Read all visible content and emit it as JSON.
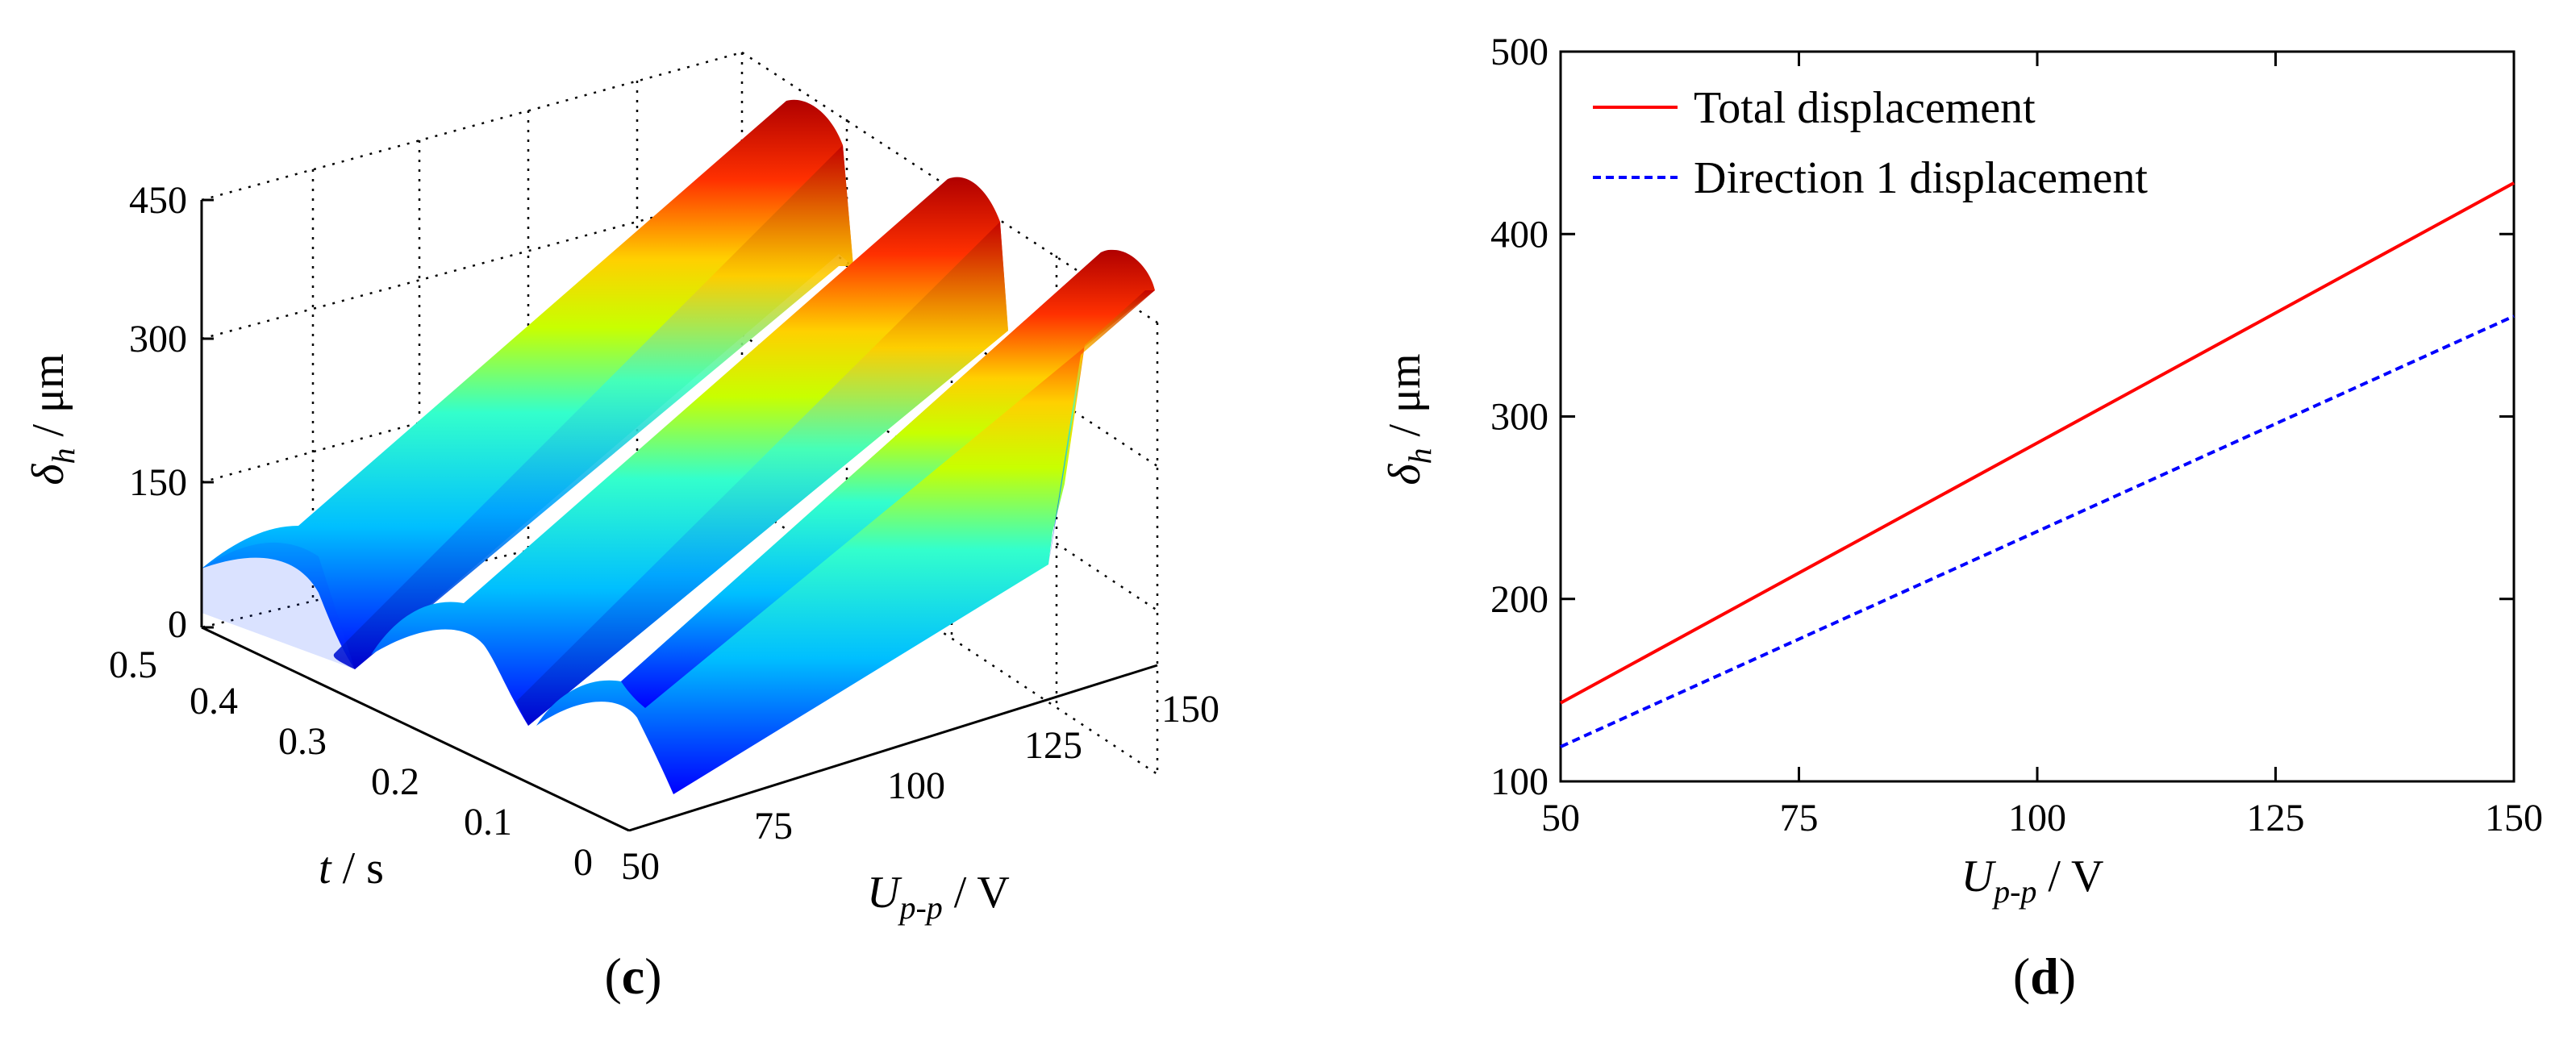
{
  "chart_data": [
    {
      "panel": "c",
      "type": "surface",
      "caption_letter": "c",
      "zlabel": {
        "symbol": "δ",
        "sub": "h",
        "unit": " / μm"
      },
      "xlabel": {
        "symbol": "t",
        "unit": " / s"
      },
      "ylabel": {
        "symbol": "U",
        "sub": "p-p",
        "unit": " / V"
      },
      "z_ticks": [
        "0",
        "150",
        "300",
        "450"
      ],
      "t_ticks": [
        "0",
        "0.1",
        "0.2",
        "0.3",
        "0.4",
        "0.5"
      ],
      "u_ticks": [
        "50",
        "75",
        "100",
        "125",
        "150"
      ],
      "t_range": [
        0,
        0.5
      ],
      "u_range": [
        50,
        150
      ],
      "z_range": [
        0,
        450
      ],
      "grid": true,
      "colormap": "jet"
    },
    {
      "panel": "d",
      "type": "line",
      "caption_letter": "d",
      "ylabel": {
        "symbol": "δ",
        "sub": "h",
        "unit": " / μm"
      },
      "xlabel": {
        "symbol": "U",
        "sub": "p-p",
        "unit": " / V"
      },
      "xlim": [
        50,
        150
      ],
      "ylim": [
        100,
        500
      ],
      "x_ticks": [
        "50",
        "75",
        "100",
        "125",
        "150"
      ],
      "y_ticks": [
        "100",
        "200",
        "300",
        "400",
        "500"
      ],
      "legend_position": "top-left",
      "series": [
        {
          "name": "Total displacement",
          "color": "#ff0000",
          "style": "solid",
          "x": [
            50,
            150
          ],
          "values": [
            143,
            428
          ]
        },
        {
          "name": "Direction 1 displacement",
          "color": "#0000ff",
          "style": "dashed",
          "x": [
            50,
            150
          ],
          "values": [
            119,
            355
          ]
        }
      ]
    }
  ]
}
